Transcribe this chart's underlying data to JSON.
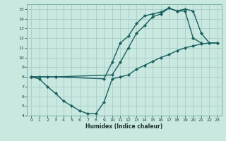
{
  "xlabel": "Humidex (Indice chaleur)",
  "bg_color": "#c8e8e0",
  "grid_color": "#a8ccc8",
  "line_color": "#1a6060",
  "xlim": [
    -0.5,
    23.5
  ],
  "ylim": [
    4,
    15.5
  ],
  "xticks": [
    0,
    1,
    2,
    3,
    4,
    5,
    6,
    7,
    8,
    9,
    10,
    11,
    12,
    13,
    14,
    15,
    16,
    17,
    18,
    19,
    20,
    21,
    22,
    23
  ],
  "yticks": [
    4,
    5,
    6,
    7,
    8,
    9,
    10,
    11,
    12,
    13,
    14,
    15
  ],
  "line1_x": [
    0,
    1,
    2,
    3,
    10,
    11,
    12,
    13,
    14,
    15,
    16,
    17,
    18,
    19,
    20,
    21
  ],
  "line1_y": [
    8,
    8,
    8,
    8,
    8.2,
    9.5,
    11.0,
    12.5,
    13.3,
    14.2,
    14.5,
    15.1,
    14.8,
    14.8,
    12.0,
    11.5
  ],
  "line2_x": [
    0,
    3,
    9,
    10,
    11,
    12,
    13,
    14,
    15,
    16,
    17,
    18,
    19,
    20,
    21,
    22,
    23
  ],
  "line2_y": [
    8,
    8,
    7.8,
    9.5,
    11.5,
    12.2,
    13.5,
    14.3,
    14.5,
    14.7,
    15.1,
    14.8,
    15.0,
    14.8,
    12.5,
    11.5,
    11.5
  ],
  "line3_x": [
    0,
    1,
    2,
    3,
    4,
    5,
    6,
    7,
    8,
    9,
    10,
    11,
    12,
    13,
    14,
    15,
    16,
    17,
    18,
    19,
    20,
    21,
    22,
    23
  ],
  "line3_y": [
    8,
    7.8,
    7.0,
    6.3,
    5.5,
    5.0,
    4.5,
    4.2,
    4.2,
    5.4,
    7.8,
    8.0,
    8.2,
    8.8,
    9.2,
    9.6,
    10.0,
    10.3,
    10.7,
    11.0,
    11.2,
    11.4,
    11.5,
    11.5
  ]
}
